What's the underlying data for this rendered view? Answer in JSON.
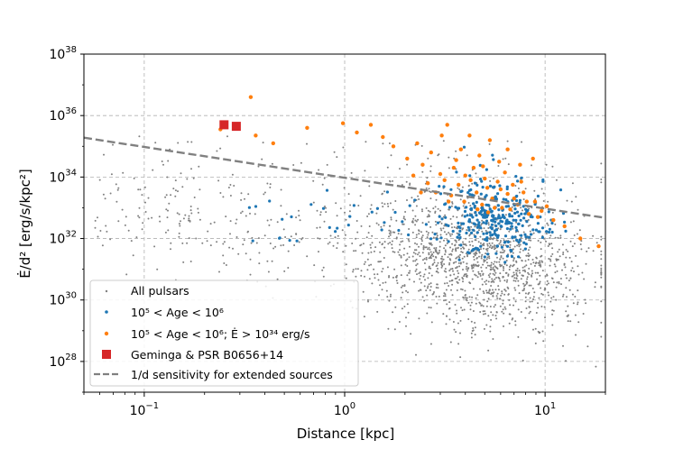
{
  "chart_data": {
    "type": "scatter",
    "xlabel": "Distance [kpc]",
    "ylabel": "Ė/d² [erg/s/kpc²]",
    "xscale": "log",
    "yscale": "log",
    "xlim": [
      0.05,
      20
    ],
    "ylim_exp": [
      27,
      38
    ],
    "x_ticks": [
      {
        "value": 0.1,
        "base": "10",
        "exp": "−1"
      },
      {
        "value": 1,
        "base": "10",
        "exp": "0"
      },
      {
        "value": 10,
        "base": "10",
        "exp": "1"
      }
    ],
    "y_ticks": [
      {
        "exp_value": 28,
        "base": "10",
        "exp": "28"
      },
      {
        "exp_value": 30,
        "base": "10",
        "exp": "30"
      },
      {
        "exp_value": 32,
        "base": "10",
        "exp": "32"
      },
      {
        "exp_value": 34,
        "base": "10",
        "exp": "34"
      },
      {
        "exp_value": 36,
        "base": "10",
        "exp": "36"
      },
      {
        "exp_value": 38,
        "base": "10",
        "exp": "38"
      }
    ],
    "grid": true,
    "legend_position": "lower-left",
    "colors": {
      "all": "#808080",
      "young": "#1f77b4",
      "young_energetic": "#ff7f0e",
      "geminga": "#d62728",
      "line": "#808080"
    },
    "legend": [
      {
        "key": "all",
        "text": "All pulsars"
      },
      {
        "key": "young",
        "text": "10⁵ < Age < 10⁶"
      },
      {
        "key": "young_energetic",
        "text": "10⁵ < Age < 10⁶; Ė > 10³⁴ erg/s"
      },
      {
        "key": "geminga",
        "text": "Geminga & PSR B0656+14"
      },
      {
        "key": "line",
        "text": "1/d sensitivity for extended sources"
      }
    ],
    "sensitivity_line": {
      "x": [
        0.05,
        20
      ],
      "log_y": [
        35.28,
        32.67
      ]
    },
    "geminga_points": [
      {
        "x": 0.25,
        "log_y": 35.7
      },
      {
        "x": 0.288,
        "log_y": 35.65
      }
    ],
    "young_energetic_points": [
      {
        "x": 0.34,
        "log_y": 36.6
      },
      {
        "x": 0.24,
        "log_y": 35.55
      },
      {
        "x": 0.36,
        "log_y": 35.35
      },
      {
        "x": 0.44,
        "log_y": 35.1
      },
      {
        "x": 0.65,
        "log_y": 35.6
      },
      {
        "x": 0.98,
        "log_y": 35.75
      },
      {
        "x": 1.15,
        "log_y": 35.45
      },
      {
        "x": 1.35,
        "log_y": 35.7
      },
      {
        "x": 1.55,
        "log_y": 35.3
      },
      {
        "x": 1.75,
        "log_y": 35.0
      },
      {
        "x": 2.05,
        "log_y": 34.6
      },
      {
        "x": 2.3,
        "log_y": 35.1
      },
      {
        "x": 2.45,
        "log_y": 34.4
      },
      {
        "x": 2.7,
        "log_y": 34.8
      },
      {
        "x": 3.05,
        "log_y": 35.35
      },
      {
        "x": 3.25,
        "log_y": 35.7
      },
      {
        "x": 3.5,
        "log_y": 34.3
      },
      {
        "x": 3.8,
        "log_y": 34.9
      },
      {
        "x": 4.2,
        "log_y": 35.35
      },
      {
        "x": 4.7,
        "log_y": 34.7
      },
      {
        "x": 5.3,
        "log_y": 35.2
      },
      {
        "x": 5.9,
        "log_y": 34.5
      },
      {
        "x": 6.5,
        "log_y": 34.9
      },
      {
        "x": 7.5,
        "log_y": 34.4
      },
      {
        "x": 8.7,
        "log_y": 34.6
      },
      {
        "x": 2.6,
        "log_y": 33.8
      },
      {
        "x": 2.85,
        "log_y": 33.5
      },
      {
        "x": 3.15,
        "log_y": 33.9
      },
      {
        "x": 3.4,
        "log_y": 33.4
      },
      {
        "x": 3.7,
        "log_y": 33.75
      },
      {
        "x": 3.95,
        "log_y": 33.2
      },
      {
        "x": 4.25,
        "log_y": 33.9
      },
      {
        "x": 4.55,
        "log_y": 33.5
      },
      {
        "x": 4.85,
        "log_y": 33.1
      },
      {
        "x": 5.15,
        "log_y": 33.65
      },
      {
        "x": 5.45,
        "log_y": 33.3
      },
      {
        "x": 5.8,
        "log_y": 33.85
      },
      {
        "x": 6.1,
        "log_y": 33.0
      },
      {
        "x": 6.5,
        "log_y": 33.45
      },
      {
        "x": 6.9,
        "log_y": 33.75
      },
      {
        "x": 7.3,
        "log_y": 33.1
      },
      {
        "x": 7.8,
        "log_y": 33.5
      },
      {
        "x": 8.3,
        "log_y": 32.8
      },
      {
        "x": 8.9,
        "log_y": 33.2
      },
      {
        "x": 9.6,
        "log_y": 32.9
      },
      {
        "x": 11.0,
        "log_y": 32.6
      },
      {
        "x": 12.5,
        "log_y": 32.4
      },
      {
        "x": 15.0,
        "log_y": 32.0
      },
      {
        "x": 18.5,
        "log_y": 31.75
      },
      {
        "x": 3.0,
        "log_y": 34.1
      },
      {
        "x": 4.0,
        "log_y": 34.05
      },
      {
        "x": 4.4,
        "log_y": 34.3
      },
      {
        "x": 5.0,
        "log_y": 33.95
      },
      {
        "x": 6.3,
        "log_y": 34.15
      },
      {
        "x": 7.0,
        "log_y": 33.3
      },
      {
        "x": 5.6,
        "log_y": 33.0
      },
      {
        "x": 2.2,
        "log_y": 34.05
      },
      {
        "x": 3.6,
        "log_y": 34.55
      },
      {
        "x": 4.9,
        "log_y": 34.35
      },
      {
        "x": 6.7,
        "log_y": 32.95
      },
      {
        "x": 7.6,
        "log_y": 33.85
      },
      {
        "x": 8.1,
        "log_y": 33.2
      },
      {
        "x": 10.2,
        "log_y": 33.05
      },
      {
        "x": 9.2,
        "log_y": 32.7
      },
      {
        "x": 4.6,
        "log_y": 32.95
      },
      {
        "x": 3.3,
        "log_y": 33.2
      },
      {
        "x": 5.2,
        "log_y": 32.85
      },
      {
        "x": 6.0,
        "log_y": 33.6
      },
      {
        "x": 2.4,
        "log_y": 33.5
      }
    ]
  }
}
